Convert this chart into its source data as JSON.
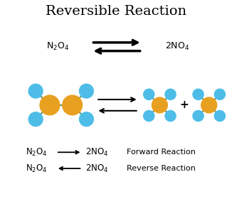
{
  "title": "Reversible Reaction",
  "title_fontsize": 14,
  "background_color": "#ffffff",
  "gold_color": "#E8A020",
  "blue_color": "#4DBDE8",
  "bond_color": "#6B8F6B",
  "text_color": "#000000",
  "fig_width": 3.26,
  "fig_height": 2.8,
  "dpi": 100
}
